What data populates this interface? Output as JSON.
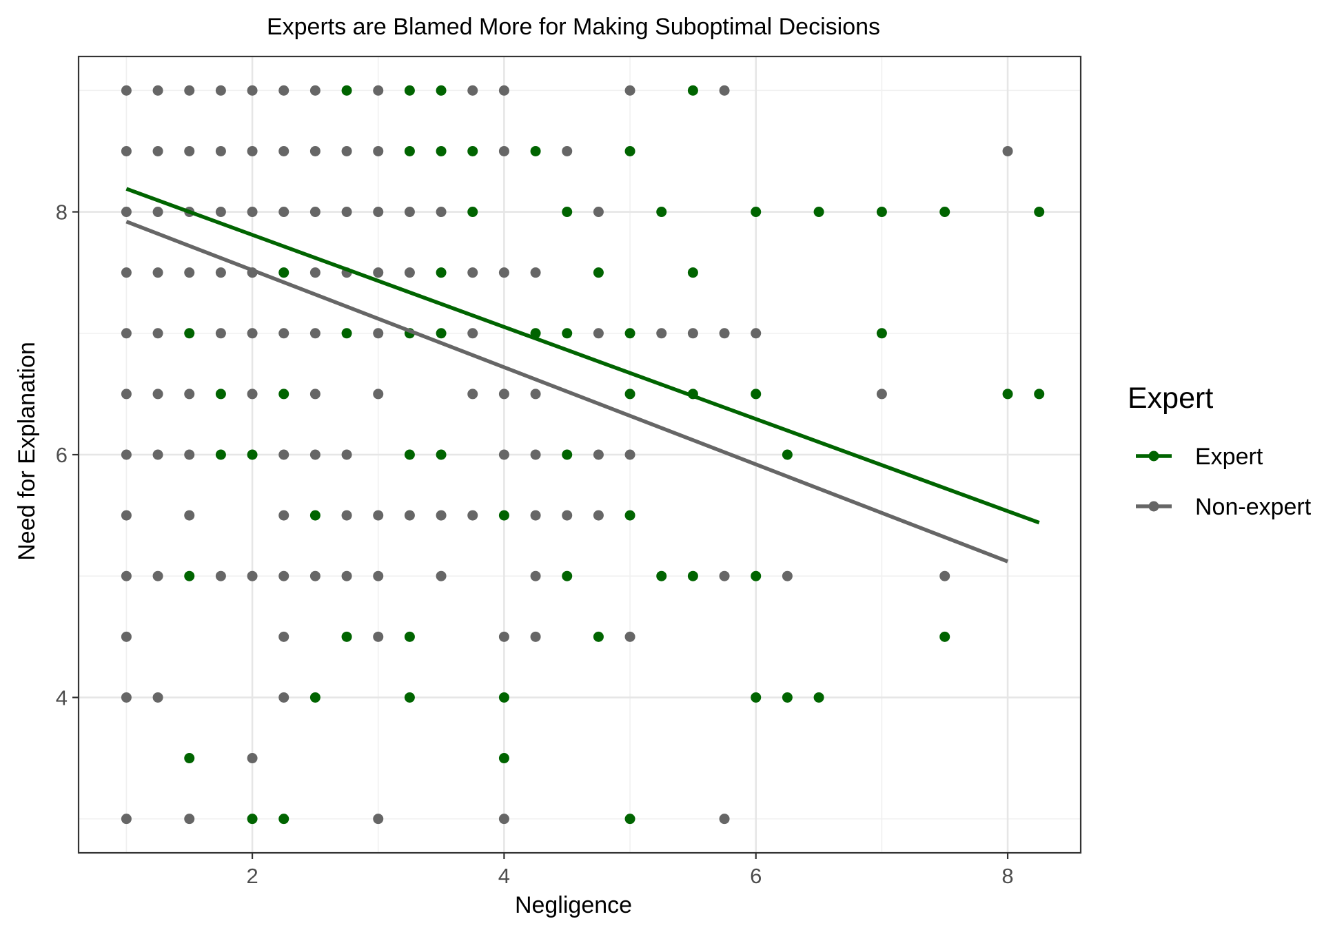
{
  "chart_data": {
    "type": "scatter",
    "title": "Experts are Blamed More for Making Suboptimal Decisions",
    "xlabel": "Negligence",
    "ylabel": "Need for Explanation",
    "xlim": [
      0.62,
      8.58
    ],
    "ylim": [
      2.72,
      9.28
    ],
    "xticks": [
      2,
      4,
      6,
      8
    ],
    "yticks": [
      4,
      6,
      8
    ],
    "grid": true,
    "legend": {
      "title": "Expert",
      "placement": "right",
      "entries": [
        "Expert",
        "Non-expert"
      ]
    },
    "colors": {
      "Expert": "#006400",
      "Non-expert": "#666666"
    },
    "series": [
      {
        "name": "Expert",
        "points": [
          [
            2.75,
            9
          ],
          [
            3.25,
            9
          ],
          [
            3.5,
            9
          ],
          [
            5.5,
            9
          ],
          [
            3.25,
            8.5
          ],
          [
            3.5,
            8.5
          ],
          [
            3.75,
            8.5
          ],
          [
            4.25,
            8.5
          ],
          [
            5,
            8.5
          ],
          [
            3.75,
            8
          ],
          [
            4.5,
            8
          ],
          [
            5.25,
            8
          ],
          [
            6,
            8
          ],
          [
            6.5,
            8
          ],
          [
            7,
            8
          ],
          [
            7.5,
            8
          ],
          [
            8.25,
            8
          ],
          [
            2.25,
            7.5
          ],
          [
            3.5,
            7.5
          ],
          [
            4.75,
            7.5
          ],
          [
            5.5,
            7.5
          ],
          [
            1.5,
            7
          ],
          [
            2.75,
            7
          ],
          [
            3.25,
            7
          ],
          [
            3.5,
            7
          ],
          [
            4.25,
            7
          ],
          [
            4.5,
            7
          ],
          [
            5,
            7
          ],
          [
            7,
            7
          ],
          [
            1.75,
            6.5
          ],
          [
            2.25,
            6.5
          ],
          [
            5,
            6.5
          ],
          [
            5.5,
            6.5
          ],
          [
            6,
            6.5
          ],
          [
            8,
            6.5
          ],
          [
            8.25,
            6.5
          ],
          [
            1.75,
            6
          ],
          [
            2,
            6
          ],
          [
            3.25,
            6
          ],
          [
            3.5,
            6
          ],
          [
            4.5,
            6
          ],
          [
            6.25,
            6
          ],
          [
            2.5,
            5.5
          ],
          [
            4,
            5.5
          ],
          [
            5,
            5.5
          ],
          [
            1.5,
            5
          ],
          [
            4.5,
            5
          ],
          [
            5.25,
            5
          ],
          [
            5.5,
            5
          ],
          [
            6,
            5
          ],
          [
            2.75,
            4.5
          ],
          [
            3.25,
            4.5
          ],
          [
            4.75,
            4.5
          ],
          [
            7.5,
            4.5
          ],
          [
            2.5,
            4
          ],
          [
            3.25,
            4
          ],
          [
            4,
            4
          ],
          [
            6,
            4
          ],
          [
            6.25,
            4
          ],
          [
            6.5,
            4
          ],
          [
            1.5,
            3.5
          ],
          [
            4,
            3.5
          ],
          [
            2,
            3
          ],
          [
            2.25,
            3
          ],
          [
            5,
            3
          ]
        ],
        "fit": {
          "x": [
            1,
            8.25
          ],
          "y": [
            8.19,
            5.44
          ]
        }
      },
      {
        "name": "Non-expert",
        "points": [
          [
            1,
            9
          ],
          [
            1.25,
            9
          ],
          [
            1.5,
            9
          ],
          [
            1.75,
            9
          ],
          [
            2,
            9
          ],
          [
            2.25,
            9
          ],
          [
            2.5,
            9
          ],
          [
            3,
            9
          ],
          [
            3.75,
            9
          ],
          [
            4,
            9
          ],
          [
            5,
            9
          ],
          [
            5.75,
            9
          ],
          [
            1,
            8.5
          ],
          [
            1.25,
            8.5
          ],
          [
            1.5,
            8.5
          ],
          [
            1.75,
            8.5
          ],
          [
            2,
            8.5
          ],
          [
            2.25,
            8.5
          ],
          [
            2.5,
            8.5
          ],
          [
            2.75,
            8.5
          ],
          [
            3,
            8.5
          ],
          [
            4,
            8.5
          ],
          [
            4.5,
            8.5
          ],
          [
            8,
            8.5
          ],
          [
            1,
            8
          ],
          [
            1.25,
            8
          ],
          [
            1.5,
            8
          ],
          [
            1.75,
            8
          ],
          [
            2,
            8
          ],
          [
            2.25,
            8
          ],
          [
            2.5,
            8
          ],
          [
            2.75,
            8
          ],
          [
            3,
            8
          ],
          [
            3.25,
            8
          ],
          [
            3.5,
            8
          ],
          [
            4.75,
            8
          ],
          [
            1,
            7.5
          ],
          [
            1.25,
            7.5
          ],
          [
            1.5,
            7.5
          ],
          [
            1.75,
            7.5
          ],
          [
            2,
            7.5
          ],
          [
            2.5,
            7.5
          ],
          [
            2.75,
            7.5
          ],
          [
            3,
            7.5
          ],
          [
            3.25,
            7.5
          ],
          [
            3.75,
            7.5
          ],
          [
            4,
            7.5
          ],
          [
            4.25,
            7.5
          ],
          [
            1,
            7
          ],
          [
            1.25,
            7
          ],
          [
            1.75,
            7
          ],
          [
            2,
            7
          ],
          [
            2.25,
            7
          ],
          [
            2.5,
            7
          ],
          [
            3,
            7
          ],
          [
            3.75,
            7
          ],
          [
            4.75,
            7
          ],
          [
            5.25,
            7
          ],
          [
            5.5,
            7
          ],
          [
            5.75,
            7
          ],
          [
            6,
            7
          ],
          [
            1,
            6.5
          ],
          [
            1.25,
            6.5
          ],
          [
            1.5,
            6.5
          ],
          [
            2,
            6.5
          ],
          [
            2.5,
            6.5
          ],
          [
            3,
            6.5
          ],
          [
            3.75,
            6.5
          ],
          [
            4,
            6.5
          ],
          [
            4.25,
            6.5
          ],
          [
            7,
            6.5
          ],
          [
            1,
            6
          ],
          [
            1.25,
            6
          ],
          [
            1.5,
            6
          ],
          [
            2.25,
            6
          ],
          [
            2.5,
            6
          ],
          [
            2.75,
            6
          ],
          [
            4,
            6
          ],
          [
            4.25,
            6
          ],
          [
            4.75,
            6
          ],
          [
            5,
            6
          ],
          [
            1,
            5.5
          ],
          [
            1.5,
            5.5
          ],
          [
            2.25,
            5.5
          ],
          [
            2.75,
            5.5
          ],
          [
            3,
            5.5
          ],
          [
            3.25,
            5.5
          ],
          [
            3.5,
            5.5
          ],
          [
            3.75,
            5.5
          ],
          [
            4.25,
            5.5
          ],
          [
            4.5,
            5.5
          ],
          [
            4.75,
            5.5
          ],
          [
            1,
            5
          ],
          [
            1.25,
            5
          ],
          [
            1.75,
            5
          ],
          [
            2,
            5
          ],
          [
            2.25,
            5
          ],
          [
            2.5,
            5
          ],
          [
            2.75,
            5
          ],
          [
            3,
            5
          ],
          [
            3.5,
            5
          ],
          [
            4.25,
            5
          ],
          [
            5.75,
            5
          ],
          [
            6.25,
            5
          ],
          [
            7.5,
            5
          ],
          [
            1,
            4.5
          ],
          [
            2.25,
            4.5
          ],
          [
            3,
            4.5
          ],
          [
            4,
            4.5
          ],
          [
            4.25,
            4.5
          ],
          [
            5,
            4.5
          ],
          [
            1,
            4
          ],
          [
            1.25,
            4
          ],
          [
            2.25,
            4
          ],
          [
            2,
            3.5
          ],
          [
            1,
            3
          ],
          [
            1.5,
            3
          ],
          [
            3,
            3
          ],
          [
            4,
            3
          ],
          [
            5.75,
            3
          ]
        ],
        "fit": {
          "x": [
            1,
            8
          ],
          "y": [
            7.92,
            5.12
          ]
        }
      }
    ]
  }
}
